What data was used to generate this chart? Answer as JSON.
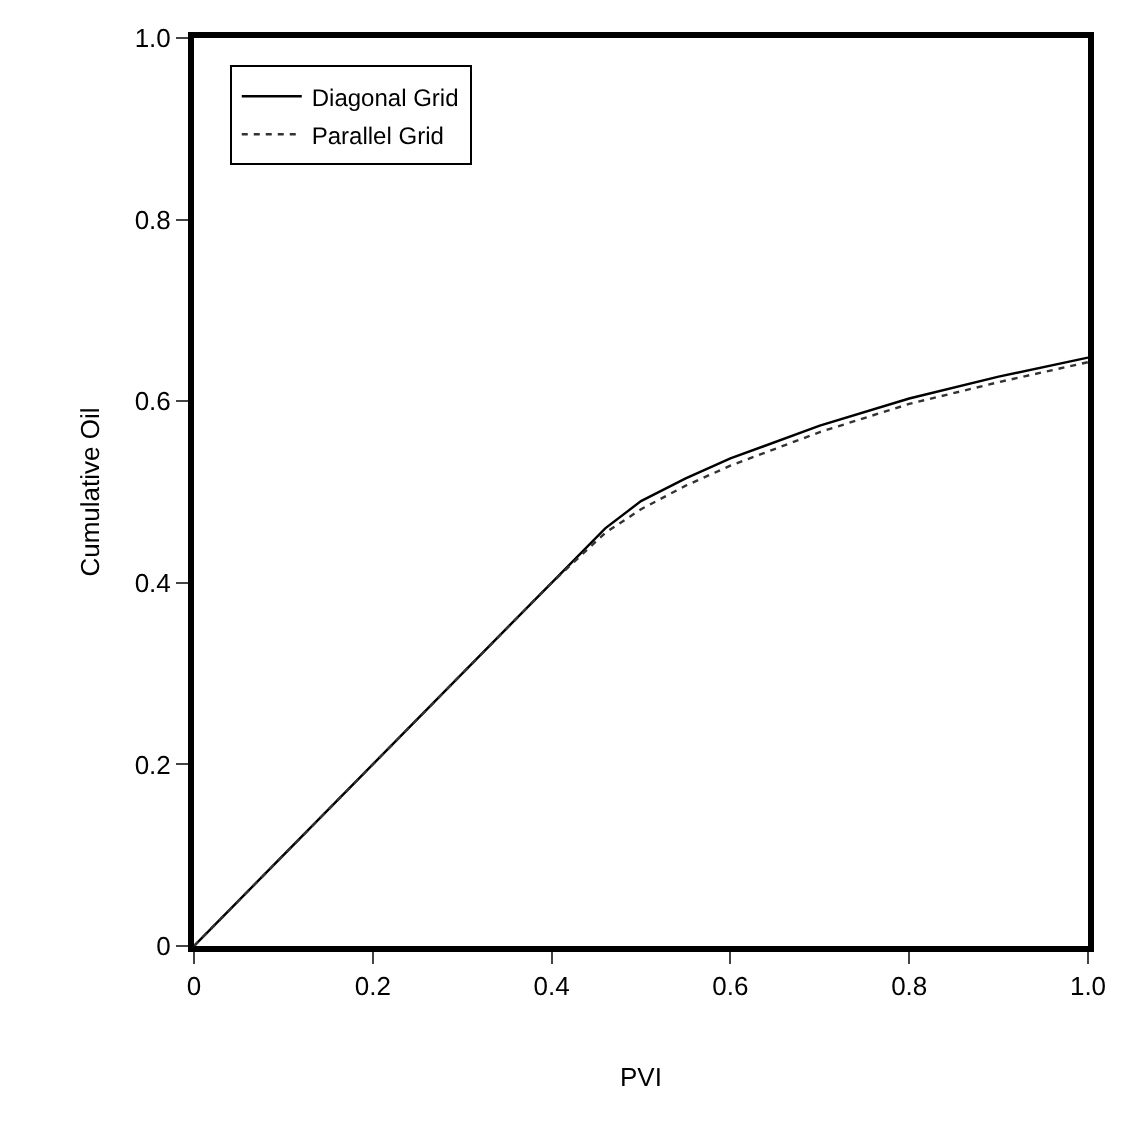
{
  "chart_data": {
    "type": "line",
    "xlabel": "PVI",
    "ylabel": "Cumulative Oil",
    "xlim": [
      0,
      1
    ],
    "ylim": [
      0,
      1
    ],
    "xticks": [
      0,
      0.2,
      0.4,
      0.6,
      0.8,
      {
        "value": 1,
        "label": "1.0"
      }
    ],
    "yticks": [
      0,
      0.2,
      0.4,
      0.6,
      0.8,
      {
        "value": 1,
        "label": "1.0"
      }
    ],
    "legend": "top left",
    "series": [
      {
        "name": "Diagonal Grid",
        "color": "#000000",
        "line_style": "solid",
        "x": [
          0,
          0.2,
          0.4,
          0.46,
          0.5,
          0.55,
          0.6,
          0.7,
          0.8,
          0.9,
          1.0
        ],
        "values": [
          0,
          0.2,
          0.4,
          0.46,
          0.49,
          0.515,
          0.537,
          0.573,
          0.603,
          0.627,
          0.648
        ]
      },
      {
        "name": "Parallel Grid",
        "color": "#333333",
        "line_style": "dotted",
        "x": [
          0,
          0.2,
          0.4,
          0.46,
          0.5,
          0.55,
          0.6,
          0.7,
          0.8,
          0.9,
          1.0
        ],
        "values": [
          0,
          0.2,
          0.4,
          0.455,
          0.481,
          0.507,
          0.529,
          0.566,
          0.597,
          0.621,
          0.643
        ]
      }
    ]
  }
}
